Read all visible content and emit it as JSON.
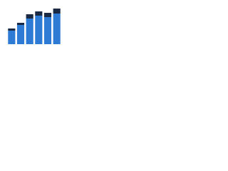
{
  "chart_data": {
    "type": "stacked_bar",
    "categories": [
      null,
      null,
      null,
      null,
      null,
      null
    ],
    "series": [
      {
        "color": "#2e7bd6",
        "values": [
          19,
          27,
          36,
          40,
          38,
          43
        ]
      },
      {
        "color": "#1b2a44",
        "values": [
          3,
          3,
          6,
          6,
          6,
          7
        ]
      }
    ],
    "ylim": [
      0,
      50
    ]
  }
}
